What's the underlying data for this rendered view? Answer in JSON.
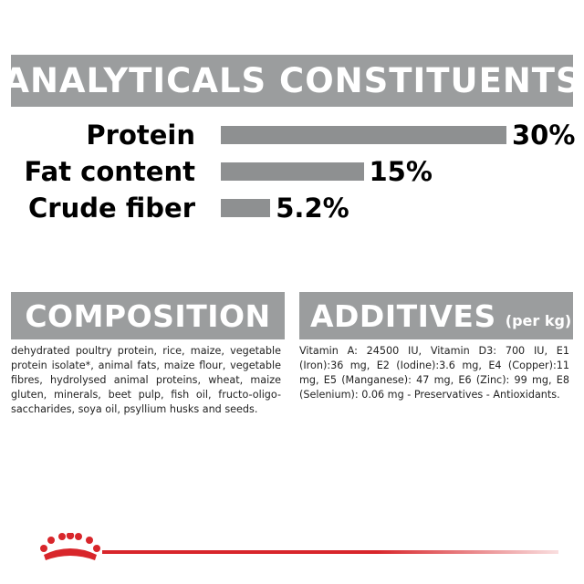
{
  "analytics": {
    "title": "ANALYTICALS CONSTITUENTS",
    "rows": [
      {
        "label": "Protein",
        "value": "30%",
        "percent": 30
      },
      {
        "label": "Fat content",
        "value": "15%",
        "percent": 15
      },
      {
        "label": "Crude fiber",
        "value": "5.2%",
        "percent": 5.2
      }
    ]
  },
  "composition": {
    "title": "COMPOSITION",
    "text": "dehydrated poultry protein, rice, maize, vegetable protein isolate*, animal fats, maize flour, vegetable fibres, hydrolysed animal proteins, wheat, maize gluten, minerals, beet pulp, fish oil, fructo-oligo-saccharides, soya oil, psyllium husks and seeds."
  },
  "additives": {
    "title": "ADDITIVES",
    "subtitle": "(per kg)",
    "text": "Vitamin A: 24500 IU, Vitamin D3: 700 IU, E1 (Iron):36 mg, E2 (Iodine):3.6 mg, E4 (Copper):11 mg, E5 (Manganese): 47 mg, E6 (Zinc): 99 mg, E8 (Selenium): 0.06 mg - Preservatives - Antioxidants."
  },
  "colors": {
    "banner": "#9b9d9e",
    "bar": "#8e9091",
    "brand_red": "#d8262b"
  },
  "footer": {
    "logo_icon": "crown-logo-icon"
  }
}
